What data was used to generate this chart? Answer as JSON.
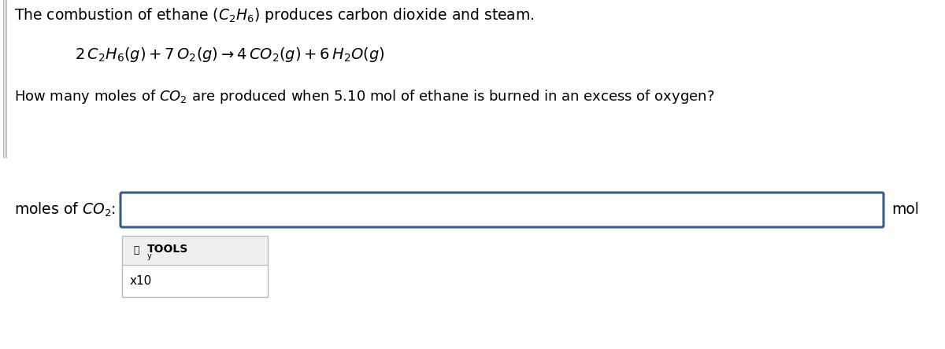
{
  "title_line": "The combustion of ethane ($C_2H_6$) produces carbon dioxide and steam.",
  "equation": "$2\\,C_2H_6(g) + 7\\,O_2(g) \\rightarrow 4\\,CO_2(g) + 6\\,H_2O(g)$",
  "question_prefix": "How many moles of $CO_2$ are produced when 5.10 mol of ethane is burned in an excess of oxygen?",
  "label_left": "moles of $CO_2$:",
  "label_right": "mol",
  "tools_label": "TOOLS",
  "tools_y": "y",
  "tools_x10": "x10",
  "bg_color": "#ffffff",
  "box_border_color": "#3a5a8a",
  "tools_box_bg_top": "#efefef",
  "tools_box_bg_bottom": "#ffffff",
  "tools_box_border": "#bbbbbb",
  "font_color": "#000000",
  "sidebar_color": "#666666"
}
